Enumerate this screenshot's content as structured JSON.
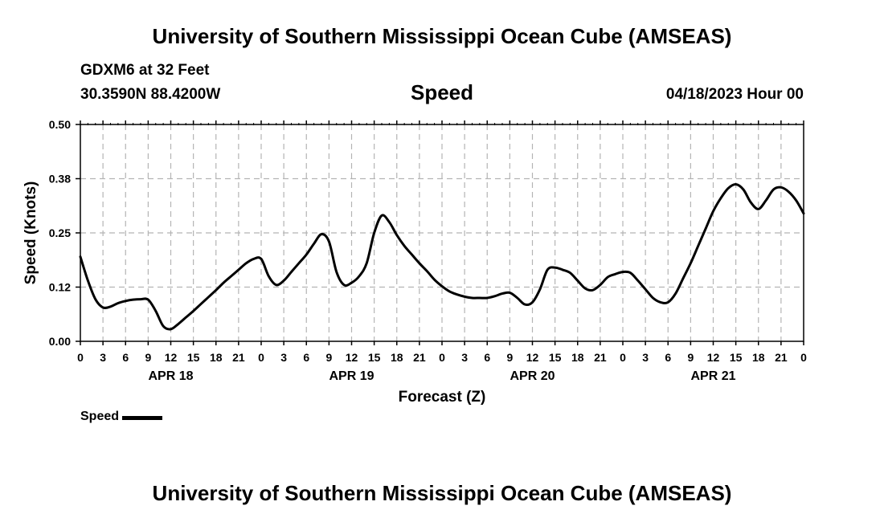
{
  "header": {
    "title": "University of Southern Mississippi Ocean Cube (AMSEAS)",
    "station": "GDXM6 at 32 Feet",
    "location": "30.3590N  88.4200W",
    "variable": "Speed",
    "date": "04/18/2023 Hour 00"
  },
  "footer": {
    "title": "University of Southern Mississippi Ocean Cube (AMSEAS)"
  },
  "legend": {
    "label": "Speed",
    "color": "#000000"
  },
  "chart_data": {
    "type": "line",
    "title": "Speed",
    "xlabel": "Forecast (Z)",
    "ylabel": "Speed (Knots)",
    "ylim": [
      0,
      0.5
    ],
    "xlim": [
      0,
      96
    ],
    "y_ticks": [
      "0.00",
      "0.12",
      "0.25",
      "0.38",
      "0.50"
    ],
    "y_tick_values": [
      0,
      0.125,
      0.25,
      0.375,
      0.5
    ],
    "x_tick_hours": [
      0,
      3,
      6,
      9,
      12,
      15,
      18,
      21,
      24,
      27,
      30,
      33,
      36,
      39,
      42,
      45,
      48,
      51,
      54,
      57,
      60,
      63,
      66,
      69,
      72,
      75,
      78,
      81,
      84,
      87,
      90,
      93,
      96
    ],
    "x_tick_labels": [
      "0",
      "3",
      "6",
      "9",
      "12",
      "15",
      "18",
      "21",
      "0",
      "3",
      "6",
      "9",
      "12",
      "15",
      "18",
      "21",
      "0",
      "3",
      "6",
      "9",
      "12",
      "15",
      "18",
      "21",
      "0",
      "3",
      "6",
      "9",
      "12",
      "15",
      "18",
      "21",
      "0"
    ],
    "day_labels": [
      {
        "label": "APR 18",
        "hour": 12
      },
      {
        "label": "APR 19",
        "hour": 36
      },
      {
        "label": "APR 20",
        "hour": 60
      },
      {
        "label": "APR 21",
        "hour": 84
      }
    ],
    "grid": true,
    "series": [
      {
        "name": "Speed",
        "color": "#000000",
        "x": [
          0,
          1,
          2,
          3,
          4,
          5,
          6,
          7,
          8,
          9,
          10,
          11,
          12,
          13,
          14,
          15,
          16,
          17,
          18,
          19,
          20,
          21,
          22,
          23,
          24,
          25,
          26,
          27,
          28,
          29,
          30,
          31,
          32,
          33,
          34,
          35,
          36,
          37,
          38,
          39,
          40,
          41,
          42,
          43,
          44,
          45,
          46,
          47,
          48,
          49,
          50,
          51,
          52,
          53,
          54,
          55,
          56,
          57,
          58,
          59,
          60,
          61,
          62,
          63,
          64,
          65,
          66,
          67,
          68,
          69,
          70,
          71,
          72,
          73,
          74,
          75,
          76,
          77,
          78,
          79,
          80,
          81,
          82,
          83,
          84,
          85,
          86,
          87,
          88,
          89,
          90,
          91,
          92,
          93,
          94,
          95,
          96
        ],
        "values": [
          0.195,
          0.14,
          0.097,
          0.078,
          0.08,
          0.088,
          0.093,
          0.096,
          0.097,
          0.096,
          0.07,
          0.035,
          0.028,
          0.04,
          0.055,
          0.07,
          0.086,
          0.102,
          0.118,
          0.135,
          0.15,
          0.165,
          0.18,
          0.19,
          0.19,
          0.15,
          0.13,
          0.14,
          0.16,
          0.18,
          0.2,
          0.225,
          0.247,
          0.23,
          0.16,
          0.13,
          0.135,
          0.15,
          0.18,
          0.25,
          0.29,
          0.275,
          0.245,
          0.22,
          0.2,
          0.18,
          0.162,
          0.142,
          0.127,
          0.115,
          0.108,
          0.103,
          0.1,
          0.1,
          0.1,
          0.104,
          0.11,
          0.112,
          0.1,
          0.085,
          0.09,
          0.12,
          0.165,
          0.17,
          0.165,
          0.158,
          0.14,
          0.122,
          0.118,
          0.13,
          0.148,
          0.155,
          0.16,
          0.158,
          0.14,
          0.12,
          0.1,
          0.09,
          0.09,
          0.11,
          0.145,
          0.18,
          0.22,
          0.26,
          0.3,
          0.33,
          0.353,
          0.362,
          0.35,
          0.32,
          0.305,
          0.325,
          0.35,
          0.355,
          0.345,
          0.325,
          0.295
        ]
      }
    ]
  }
}
